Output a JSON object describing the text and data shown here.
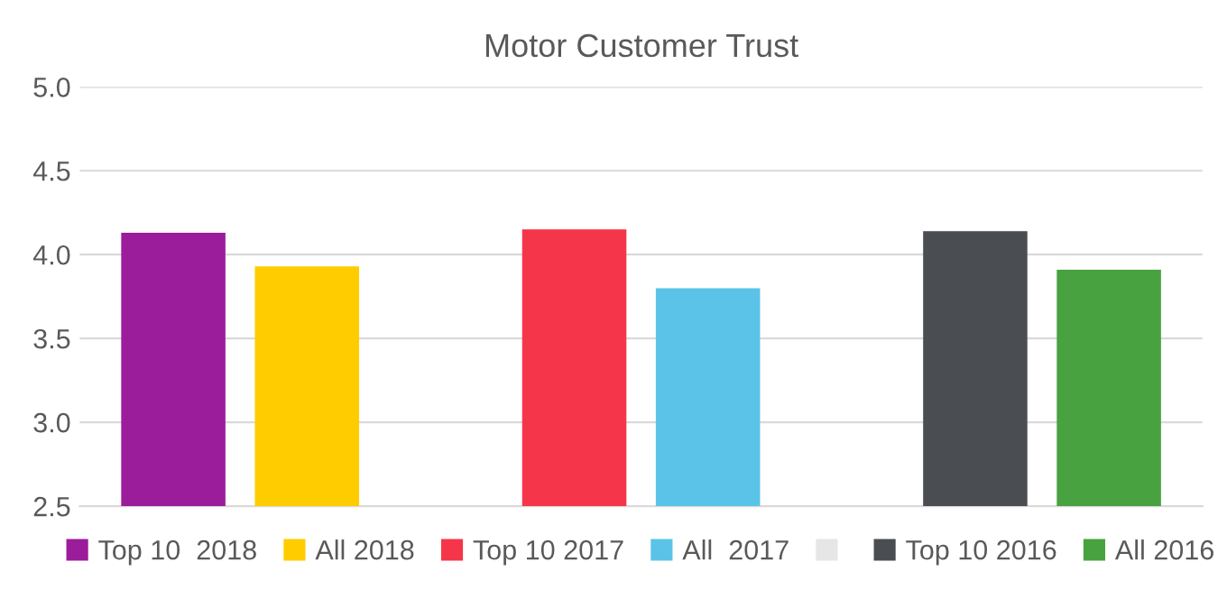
{
  "chart_data": {
    "type": "bar",
    "title": "Motor Customer Trust",
    "categories": [
      null,
      null,
      null,
      null,
      null,
      null,
      null,
      null
    ],
    "series": [
      {
        "name": "Top 10  2018",
        "color": "#9b1d9b",
        "values": [
          4.13,
          null,
          null,
          null,
          null,
          null,
          null,
          null
        ]
      },
      {
        "name": "All 2018",
        "color": "#ffcc00",
        "values": [
          null,
          3.93,
          null,
          null,
          null,
          null,
          null,
          null
        ]
      },
      {
        "name": "Top 10 2017",
        "color": "#f5364a",
        "values": [
          null,
          null,
          null,
          4.15,
          null,
          null,
          null,
          null
        ]
      },
      {
        "name": "All  2017",
        "color": "#5bc3e8",
        "values": [
          null,
          null,
          null,
          null,
          3.8,
          null,
          null,
          null
        ]
      },
      {
        "color": "#e7e6e6",
        "values": [
          null,
          null,
          null,
          null,
          null,
          null,
          null,
          null
        ]
      },
      {
        "name": "Top 10 2016",
        "color": "#4a4e52",
        "values": [
          null,
          null,
          null,
          null,
          null,
          null,
          4.14,
          null
        ]
      },
      {
        "name": "All 2016",
        "color": "#48a23f",
        "values": [
          null,
          null,
          null,
          null,
          null,
          null,
          null,
          3.91
        ]
      }
    ],
    "ylim": [
      2.5,
      5.0
    ],
    "yticks": [
      2.5,
      {
        "value": 3,
        "label": "3.0"
      },
      3.5,
      {
        "value": 4,
        "label": "4.0"
      },
      4.5,
      {
        "value": 5,
        "label": "5.0"
      }
    ],
    "grid": "y",
    "legend": "bottom"
  }
}
